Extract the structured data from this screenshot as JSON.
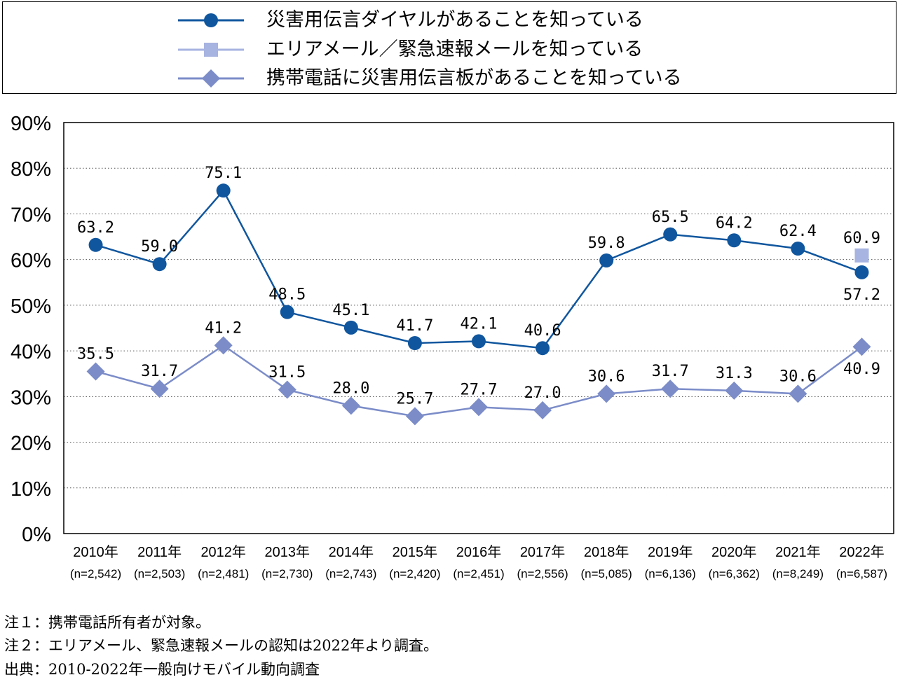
{
  "colors": {
    "series1": "#10569e",
    "series2": "#a7b3e0",
    "series3": "#7b8cc8",
    "grid": "#555555"
  },
  "legend": [
    {
      "label": "災害用伝言ダイヤルがあることを知っている",
      "marker": "circle"
    },
    {
      "label": "エリアメール／緊急速報メールを知っている",
      "marker": "square"
    },
    {
      "label": "携帯電話に災害用伝言板があることを知っている",
      "marker": "diamond"
    }
  ],
  "chart_data": {
    "type": "line",
    "categories": [
      "2010年",
      "2011年",
      "2012年",
      "2013年",
      "2014年",
      "2015年",
      "2016年",
      "2017年",
      "2018年",
      "2019年",
      "2020年",
      "2021年",
      "2022年"
    ],
    "sample_sizes": [
      "(n=2,542)",
      "(n=2,503)",
      "(n=2,481)",
      "(n=2,730)",
      "(n=2,743)",
      "(n=2,420)",
      "(n=2,451)",
      "(n=2,556)",
      "(n=5,085)",
      "(n=6,136)",
      "(n=6,362)",
      "(n=8,249)",
      "(n=6,587)"
    ],
    "ylim": [
      0,
      90
    ],
    "yticks": [
      "0%",
      "10%",
      "20%",
      "30%",
      "40%",
      "50%",
      "60%",
      "70%",
      "80%",
      "90%"
    ],
    "grid": "horizontal dotted",
    "series": [
      {
        "name": "災害用伝言ダイヤルがあることを知っている",
        "marker": "circle",
        "values": [
          63.2,
          59.0,
          75.1,
          48.5,
          45.1,
          41.7,
          42.1,
          40.6,
          59.8,
          65.5,
          64.2,
          62.4,
          57.2
        ],
        "labels": [
          "63.2",
          "59.0",
          "75.1",
          "48.5",
          "45.1",
          "41.7",
          "42.1",
          "40.6",
          "59.8",
          "65.5",
          "64.2",
          "62.4",
          "57.2"
        ]
      },
      {
        "name": "エリアメール／緊急速報メールを知っている",
        "marker": "square",
        "values": [
          null,
          null,
          null,
          null,
          null,
          null,
          null,
          null,
          null,
          null,
          null,
          null,
          60.9
        ],
        "labels": [
          null,
          null,
          null,
          null,
          null,
          null,
          null,
          null,
          null,
          null,
          null,
          null,
          "60.9"
        ]
      },
      {
        "name": "携帯電話に災害用伝言板があることを知っている",
        "marker": "diamond",
        "values": [
          35.5,
          31.7,
          41.2,
          31.5,
          28.0,
          25.7,
          27.7,
          27.0,
          30.6,
          31.7,
          31.3,
          30.6,
          40.9
        ],
        "labels": [
          "35.5",
          "31.7",
          "41.2",
          "31.5",
          "28.0",
          "25.7",
          "27.7",
          "27.0",
          "30.6",
          "31.7",
          "31.3",
          "30.6",
          "40.9"
        ]
      }
    ]
  },
  "notes": [
    "注１：携帯電話所有者が対象。",
    "注２：エリアメール、緊急速報メールの認知は2022年より調査。",
    "出典：2010-2022年一般向けモバイル動向調査"
  ]
}
